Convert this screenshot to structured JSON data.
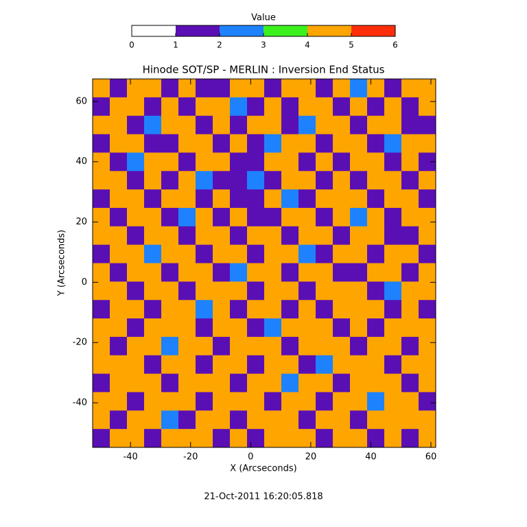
{
  "chart_data": {
    "type": "heatmap",
    "title": "Hinode SOT/SP - MERLIN : Inversion End Status",
    "x_label": "X (Arcseconds)",
    "y_label": "Y (Arcseconds)",
    "footer": "21-Oct-2011 16:20:05.818",
    "xlim": [
      -52.6,
      61.6
    ],
    "ylim": [
      -54.8,
      67.5
    ],
    "xticks": [
      -40,
      -20,
      0,
      20,
      40,
      60
    ],
    "yticks": [
      -40,
      -20,
      0,
      20,
      40,
      60
    ],
    "colorbar": {
      "label": "Value",
      "lim": [
        0,
        6
      ],
      "ticks": [
        0,
        1,
        2,
        3,
        4,
        5,
        6
      ],
      "colors": [
        "#ffffff",
        "#5a0fb4",
        "#1e82ff",
        "#3cf01e",
        "#ffa500",
        "#ff2d0a"
      ]
    },
    "z": [
      [
        4,
        1,
        4,
        4,
        1,
        4,
        1,
        1,
        4,
        4,
        1,
        4,
        4,
        1,
        4,
        2,
        4,
        1,
        4,
        4
      ],
      [
        1,
        4,
        4,
        1,
        4,
        1,
        4,
        4,
        2,
        1,
        4,
        1,
        4,
        4,
        1,
        4,
        1,
        4,
        1,
        4
      ],
      [
        4,
        4,
        1,
        2,
        4,
        4,
        1,
        4,
        1,
        4,
        4,
        1,
        2,
        4,
        4,
        1,
        4,
        4,
        1,
        1
      ],
      [
        1,
        4,
        4,
        1,
        1,
        4,
        4,
        1,
        4,
        1,
        2,
        4,
        4,
        1,
        4,
        4,
        1,
        2,
        4,
        4
      ],
      [
        4,
        1,
        2,
        4,
        4,
        1,
        4,
        4,
        1,
        1,
        4,
        4,
        1,
        4,
        1,
        4,
        4,
        1,
        4,
        1
      ],
      [
        4,
        4,
        1,
        4,
        1,
        4,
        2,
        1,
        1,
        2,
        1,
        4,
        4,
        1,
        4,
        1,
        4,
        4,
        1,
        4
      ],
      [
        1,
        4,
        4,
        1,
        4,
        4,
        1,
        4,
        1,
        1,
        4,
        2,
        1,
        4,
        4,
        4,
        1,
        4,
        4,
        1
      ],
      [
        4,
        1,
        4,
        4,
        1,
        2,
        4,
        1,
        4,
        1,
        1,
        4,
        4,
        1,
        4,
        2,
        4,
        1,
        4,
        4
      ],
      [
        4,
        4,
        1,
        4,
        4,
        1,
        4,
        4,
        1,
        4,
        4,
        1,
        4,
        4,
        1,
        4,
        4,
        1,
        1,
        4
      ],
      [
        1,
        4,
        4,
        2,
        4,
        4,
        1,
        4,
        4,
        1,
        4,
        4,
        2,
        1,
        4,
        4,
        1,
        4,
        4,
        1
      ],
      [
        4,
        1,
        4,
        4,
        1,
        4,
        4,
        1,
        2,
        4,
        4,
        1,
        4,
        4,
        1,
        1,
        4,
        4,
        1,
        4
      ],
      [
        4,
        4,
        1,
        4,
        4,
        1,
        4,
        4,
        4,
        1,
        4,
        4,
        1,
        4,
        4,
        4,
        1,
        2,
        4,
        4
      ],
      [
        1,
        4,
        4,
        1,
        4,
        4,
        2,
        4,
        1,
        4,
        4,
        1,
        4,
        1,
        4,
        4,
        4,
        1,
        4,
        1
      ],
      [
        4,
        4,
        1,
        4,
        4,
        4,
        1,
        4,
        4,
        1,
        2,
        4,
        4,
        4,
        1,
        4,
        1,
        4,
        4,
        4
      ],
      [
        4,
        1,
        4,
        4,
        2,
        4,
        4,
        1,
        4,
        4,
        4,
        1,
        4,
        4,
        4,
        1,
        4,
        4,
        1,
        4
      ],
      [
        4,
        4,
        4,
        1,
        4,
        4,
        1,
        4,
        4,
        1,
        4,
        4,
        1,
        2,
        4,
        4,
        4,
        1,
        4,
        4
      ],
      [
        1,
        4,
        4,
        4,
        1,
        4,
        4,
        4,
        1,
        4,
        4,
        2,
        4,
        4,
        1,
        4,
        4,
        4,
        1,
        4
      ],
      [
        4,
        4,
        1,
        4,
        4,
        4,
        1,
        4,
        4,
        4,
        1,
        4,
        4,
        1,
        4,
        4,
        2,
        4,
        4,
        1
      ],
      [
        4,
        1,
        4,
        4,
        2,
        1,
        4,
        4,
        1,
        4,
        4,
        4,
        1,
        4,
        4,
        1,
        4,
        4,
        4,
        4
      ],
      [
        1,
        4,
        4,
        1,
        4,
        4,
        4,
        1,
        4,
        1,
        4,
        4,
        4,
        1,
        4,
        4,
        1,
        4,
        1,
        4
      ]
    ]
  }
}
